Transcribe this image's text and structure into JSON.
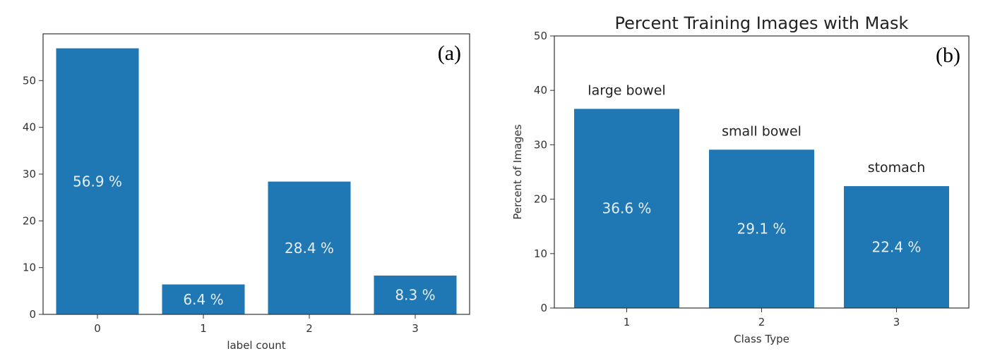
{
  "chart_data": [
    {
      "type": "bar",
      "panel_label": "(a)",
      "title": "",
      "xlabel": "label count",
      "ylabel": "",
      "categories": [
        "0",
        "1",
        "2",
        "3"
      ],
      "values": [
        56.9,
        6.4,
        28.4,
        8.3
      ],
      "value_labels": [
        "56.9 %",
        "6.4 %",
        "28.4 %",
        "8.3 %"
      ],
      "yticks": [
        0,
        10,
        20,
        30,
        40,
        50
      ],
      "ylim": [
        0,
        60
      ],
      "grid": false,
      "bar_color": "#1f77b4",
      "value_label_color": "#e6eef6"
    },
    {
      "type": "bar",
      "panel_label": "(b)",
      "title": "Percent Training Images with Mask",
      "xlabel": "Class Type",
      "ylabel": "Percent of Images",
      "categories": [
        "1",
        "2",
        "3"
      ],
      "bar_names": [
        "large bowel",
        "small bowel",
        "stomach"
      ],
      "values": [
        36.6,
        29.1,
        22.4
      ],
      "value_labels": [
        "36.6 %",
        "29.1 %",
        "22.4 %"
      ],
      "yticks": [
        0,
        10,
        20,
        30,
        40,
        50
      ],
      "ylim": [
        0,
        50
      ],
      "grid": false,
      "bar_color": "#1f77b4",
      "value_label_color": "#e6eef6"
    }
  ]
}
